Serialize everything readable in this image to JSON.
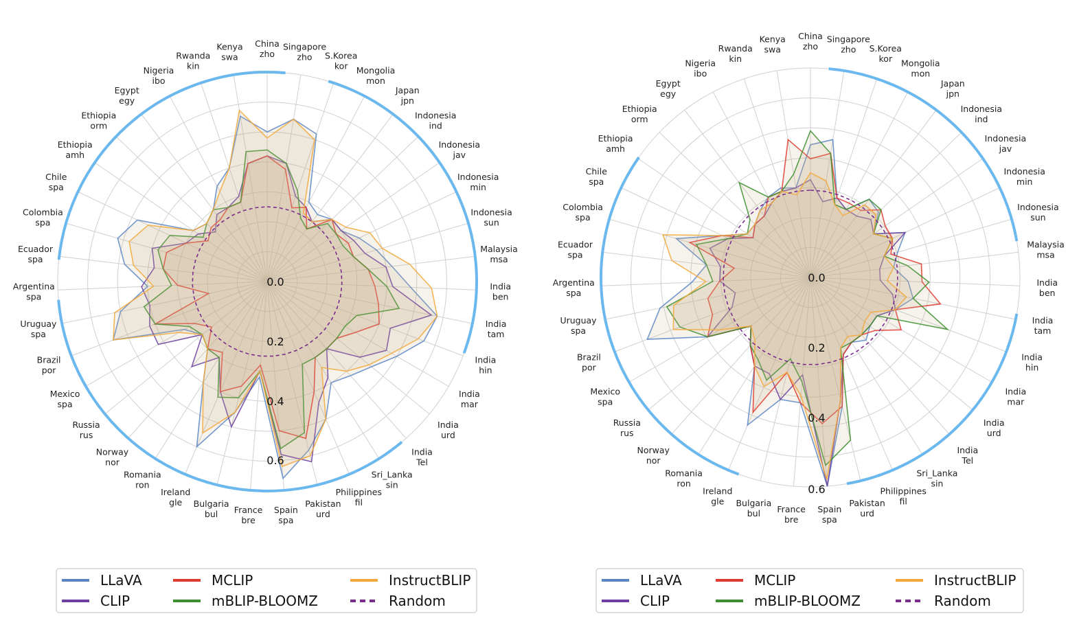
{
  "chart_data": [
    {
      "type": "radar",
      "title": "",
      "categories": [
        [
          "China",
          "zho"
        ],
        [
          "Singapore",
          "zho"
        ],
        [
          "S.Korea",
          "kor"
        ],
        [
          "Mongolia",
          "mon"
        ],
        [
          "Japan",
          "jpn"
        ],
        [
          "Indonesia",
          "ind"
        ],
        [
          "Indonesia",
          "jav"
        ],
        [
          "Indonesia",
          "min"
        ],
        [
          "Indonesia",
          "sun"
        ],
        [
          "Malaysia",
          "msa"
        ],
        [
          "India",
          "ben"
        ],
        [
          "India",
          "tam"
        ],
        [
          "India",
          "hin"
        ],
        [
          "India",
          "mar"
        ],
        [
          "India",
          "urd"
        ],
        [
          "India",
          "Tel"
        ],
        [
          "Sri_Lanka",
          "sin"
        ],
        [
          "Philippines",
          "fil"
        ],
        [
          "Pakistan",
          "urd"
        ],
        [
          "Spain",
          "spa"
        ],
        [
          "France",
          "bre"
        ],
        [
          "Bulgaria",
          "bul"
        ],
        [
          "Ireland",
          "gle"
        ],
        [
          "Romania",
          "ron"
        ],
        [
          "Norway",
          "nor"
        ],
        [
          "Russia",
          "rus"
        ],
        [
          "Mexico",
          "spa"
        ],
        [
          "Brazil",
          "por"
        ],
        [
          "Uruguay",
          "spa"
        ],
        [
          "Argentina",
          "spa"
        ],
        [
          "Ecuador",
          "spa"
        ],
        [
          "Colombia",
          "spa"
        ],
        [
          "Chile",
          "spa"
        ],
        [
          "Ethiopia",
          "amh"
        ],
        [
          "Ethiopia",
          "orm"
        ],
        [
          "Egypt",
          "egy"
        ],
        [
          "Nigeria",
          "ibo"
        ],
        [
          "Rwanda",
          "kin"
        ],
        [
          "Kenya",
          "swa"
        ]
      ],
      "r_ticks": [
        "0.0",
        "0.2",
        "0.4",
        "0.6"
      ],
      "rlim": [
        0,
        0.7
      ],
      "grid": true,
      "series": [
        {
          "name": "LLaVA",
          "values": [
            0.5,
            0.55,
            0.52,
            0.3,
            0.28,
            0.3,
            0.3,
            0.34,
            0.38,
            0.42,
            0.48,
            0.58,
            0.56,
            0.5,
            0.45,
            0.42,
            0.4,
            0.5,
            0.58,
            0.66,
            0.32,
            0.45,
            0.6,
            0.4,
            0.3,
            0.28,
            0.32,
            0.55,
            0.5,
            0.4,
            0.48,
            0.52,
            0.48,
            0.3,
            0.28,
            0.3,
            0.36,
            0.4,
            0.56
          ]
        },
        {
          "name": "CLIP",
          "values": [
            0.42,
            0.4,
            0.3,
            0.28,
            0.25,
            0.3,
            0.3,
            0.32,
            0.34,
            0.4,
            0.42,
            0.56,
            0.44,
            0.46,
            0.4,
            0.3,
            0.38,
            0.44,
            0.62,
            0.58,
            0.3,
            0.5,
            0.4,
            0.3,
            0.38,
            0.28,
            0.42,
            0.42,
            0.4,
            0.42,
            0.38,
            0.4,
            0.3,
            0.28,
            0.24,
            0.28,
            0.28,
            0.3,
            0.4
          ]
        },
        {
          "name": "MCLIP",
          "values": [
            0.42,
            0.38,
            0.26,
            0.28,
            0.22,
            0.3,
            0.28,
            0.3,
            0.3,
            0.34,
            0.36,
            0.38,
            0.4,
            0.34,
            0.3,
            0.3,
            0.3,
            0.4,
            0.54,
            0.5,
            0.28,
            0.36,
            0.4,
            0.28,
            0.3,
            0.24,
            0.28,
            0.4,
            0.2,
            0.3,
            0.35,
            0.35,
            0.3,
            0.24,
            0.26,
            0.26,
            0.28,
            0.28,
            0.4
          ]
        },
        {
          "name": "mBLIP-BLOOMZ",
          "values": [
            0.44,
            0.4,
            0.32,
            0.24,
            0.22,
            0.28,
            0.28,
            0.28,
            0.3,
            0.34,
            0.4,
            0.45,
            0.32,
            0.3,
            0.3,
            0.3,
            0.3,
            0.3,
            0.52,
            0.56,
            0.3,
            0.4,
            0.42,
            0.3,
            0.3,
            0.28,
            0.3,
            0.4,
            0.42,
            0.32,
            0.35,
            0.38,
            0.36,
            0.26,
            0.28,
            0.3,
            0.28,
            0.28,
            0.44
          ]
        },
        {
          "name": "InstructBLIP",
          "values": [
            0.48,
            0.55,
            0.5,
            0.26,
            0.25,
            0.3,
            0.32,
            0.38,
            0.4,
            0.48,
            0.55,
            0.58,
            0.54,
            0.48,
            0.44,
            0.4,
            0.34,
            0.5,
            0.6,
            0.62,
            0.3,
            0.45,
            0.55,
            0.4,
            0.3,
            0.28,
            0.34,
            0.55,
            0.52,
            0.38,
            0.45,
            0.48,
            0.44,
            0.3,
            0.28,
            0.3,
            0.34,
            0.4,
            0.58
          ]
        },
        {
          "name": "Random",
          "values": [
            0.25,
            0.25,
            0.25,
            0.25,
            0.25,
            0.25,
            0.25,
            0.25,
            0.25,
            0.25,
            0.25,
            0.25,
            0.25,
            0.25,
            0.25,
            0.25,
            0.25,
            0.25,
            0.25,
            0.25,
            0.25,
            0.25,
            0.25,
            0.25,
            0.25,
            0.25,
            0.25,
            0.25,
            0.25,
            0.25,
            0.25,
            0.25,
            0.25,
            0.25,
            0.25,
            0.25,
            0.25,
            0.25,
            0.25
          ]
        }
      ]
    },
    {
      "type": "radar",
      "title": "",
      "categories": [
        [
          "China",
          "zho"
        ],
        [
          "Singapore",
          "zho"
        ],
        [
          "S.Korea",
          "kor"
        ],
        [
          "Mongolia",
          "mon"
        ],
        [
          "Japan",
          "jpn"
        ],
        [
          "Indonesia",
          "ind"
        ],
        [
          "Indonesia",
          "jav"
        ],
        [
          "Indonesia",
          "min"
        ],
        [
          "Indonesia",
          "sun"
        ],
        [
          "Malaysia",
          "msa"
        ],
        [
          "India",
          "ben"
        ],
        [
          "India",
          "tam"
        ],
        [
          "India",
          "hin"
        ],
        [
          "India",
          "mar"
        ],
        [
          "India",
          "urd"
        ],
        [
          "India",
          "Tel"
        ],
        [
          "Sri_Lanka",
          "sin"
        ],
        [
          "Philippines",
          "fil"
        ],
        [
          "Pakistan",
          "urd"
        ],
        [
          "Spain",
          "spa"
        ],
        [
          "France",
          "bre"
        ],
        [
          "Bulgaria",
          "bul"
        ],
        [
          "Ireland",
          "gle"
        ],
        [
          "Romania",
          "ron"
        ],
        [
          "Norway",
          "nor"
        ],
        [
          "Russia",
          "rus"
        ],
        [
          "Mexico",
          "spa"
        ],
        [
          "Brazil",
          "por"
        ],
        [
          "Uruguay",
          "spa"
        ],
        [
          "Argentina",
          "spa"
        ],
        [
          "Ecuador",
          "spa"
        ],
        [
          "Colombia",
          "spa"
        ],
        [
          "Chile",
          "spa"
        ],
        [
          "Ethiopia",
          "amh"
        ],
        [
          "Ethiopia",
          "orm"
        ],
        [
          "Egypt",
          "egy"
        ],
        [
          "Nigeria",
          "ibo"
        ],
        [
          "Rwanda",
          "kin"
        ],
        [
          "Kenya",
          "swa"
        ]
      ],
      "r_ticks": [
        "0.0",
        "0.2",
        "0.4",
        "0.6"
      ],
      "rlim": [
        0,
        0.6
      ],
      "grid": true,
      "series": [
        {
          "name": "LLaVA",
          "values": [
            0.38,
            0.4,
            0.24,
            0.22,
            0.28,
            0.27,
            0.22,
            0.3,
            0.26,
            0.24,
            0.28,
            0.3,
            0.26,
            0.22,
            0.22,
            0.24,
            0.22,
            0.24,
            0.38,
            0.6,
            0.36,
            0.36,
            0.46,
            0.3,
            0.26,
            0.22,
            0.34,
            0.5,
            0.44,
            0.34,
            0.3,
            0.4,
            0.28,
            0.22,
            0.22,
            0.24,
            0.26,
            0.27,
            0.26
          ]
        },
        {
          "name": "CLIP",
          "values": [
            0.28,
            0.22,
            0.24,
            0.22,
            0.22,
            0.24,
            0.22,
            0.3,
            0.22,
            0.2,
            0.2,
            0.24,
            0.26,
            0.22,
            0.22,
            0.22,
            0.22,
            0.24,
            0.36,
            0.6,
            0.28,
            0.36,
            0.3,
            0.3,
            0.26,
            0.22,
            0.34,
            0.24,
            0.22,
            0.26,
            0.26,
            0.3,
            0.26,
            0.2,
            0.22,
            0.22,
            0.24,
            0.26,
            0.26
          ]
        },
        {
          "name": "MCLIP",
          "values": [
            0.34,
            0.36,
            0.24,
            0.24,
            0.24,
            0.28,
            0.26,
            0.26,
            0.24,
            0.32,
            0.32,
            0.38,
            0.26,
            0.3,
            0.24,
            0.22,
            0.22,
            0.24,
            0.38,
            0.42,
            0.36,
            0.28,
            0.42,
            0.3,
            0.26,
            0.22,
            0.34,
            0.3,
            0.3,
            0.26,
            0.22,
            0.36,
            0.28,
            0.2,
            0.22,
            0.22,
            0.26,
            0.26,
            0.4
          ]
        },
        {
          "name": "mBLIP-BLOOMZ",
          "values": [
            0.42,
            0.36,
            0.22,
            0.22,
            0.28,
            0.28,
            0.22,
            0.26,
            0.22,
            0.28,
            0.34,
            0.3,
            0.42,
            0.22,
            0.22,
            0.22,
            0.22,
            0.22,
            0.48,
            0.54,
            0.3,
            0.24,
            0.32,
            0.28,
            0.26,
            0.22,
            0.34,
            0.4,
            0.42,
            0.28,
            0.3,
            0.34,
            0.26,
            0.22,
            0.24,
            0.34,
            0.26,
            0.26,
            0.3
          ]
        },
        {
          "name": "InstructBLIP",
          "values": [
            0.3,
            0.28,
            0.22,
            0.2,
            0.26,
            0.26,
            0.22,
            0.26,
            0.22,
            0.24,
            0.22,
            0.28,
            0.26,
            0.2,
            0.2,
            0.22,
            0.2,
            0.22,
            0.36,
            0.58,
            0.34,
            0.28,
            0.34,
            0.3,
            0.24,
            0.22,
            0.3,
            0.42,
            0.4,
            0.3,
            0.4,
            0.44,
            0.28,
            0.22,
            0.22,
            0.24,
            0.24,
            0.26,
            0.24
          ]
        },
        {
          "name": "Random",
          "values": [
            0.25,
            0.25,
            0.25,
            0.25,
            0.25,
            0.25,
            0.25,
            0.25,
            0.25,
            0.25,
            0.25,
            0.25,
            0.25,
            0.25,
            0.25,
            0.25,
            0.25,
            0.25,
            0.25,
            0.25,
            0.25,
            0.25,
            0.25,
            0.25,
            0.25,
            0.25,
            0.25,
            0.25,
            0.25,
            0.25,
            0.25,
            0.25,
            0.25,
            0.25,
            0.25,
            0.25,
            0.25,
            0.25,
            0.25
          ]
        }
      ]
    }
  ],
  "colors": {
    "LLaVA": "#5b86c4",
    "CLIP": "#6b3fa0",
    "MCLIP": "#e03a2f",
    "mBLIP-BLOOMZ": "#3c8f2e",
    "InstructBLIP": "#f2a93b",
    "Random": "#7b2d8e",
    "region_ring": "#6bb8ee",
    "grid": "#d0d0d0",
    "fill_base": "#c8b08a"
  },
  "legend": {
    "placement": "bottom",
    "entries": [
      "LLaVA",
      "CLIP",
      "MCLIP",
      "mBLIP-BLOOMZ",
      "InstructBLIP",
      "Random"
    ]
  }
}
